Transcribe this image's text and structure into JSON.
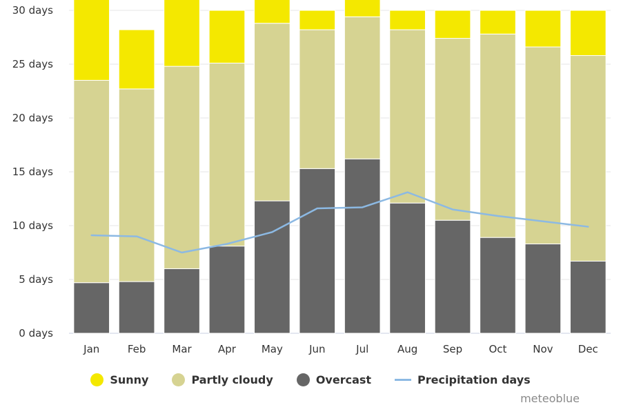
{
  "chart_data": {
    "type": "bar",
    "stacked": true,
    "categories": [
      "Jan",
      "Feb",
      "Mar",
      "Apr",
      "May",
      "Jun",
      "Jul",
      "Aug",
      "Sep",
      "Oct",
      "Nov",
      "Dec"
    ],
    "ylim": [
      0,
      30
    ],
    "yticks": [
      "0 days",
      "5 days",
      "10 days",
      "15 days",
      "20 days",
      "25 days",
      "30 days"
    ],
    "ytick_values": [
      0,
      5,
      10,
      15,
      20,
      25,
      30
    ],
    "grid": true,
    "legend_position": "bottom",
    "series": [
      {
        "name": "Overcast",
        "kind": "bar",
        "color": "#666666",
        "values": [
          4.7,
          4.8,
          6.0,
          8.1,
          12.3,
          15.3,
          16.2,
          12.1,
          10.5,
          8.9,
          8.3,
          6.7
        ]
      },
      {
        "name": "Partly cloudy",
        "kind": "bar",
        "color": "#d6d392",
        "values": [
          18.8,
          17.9,
          18.8,
          17.0,
          16.5,
          12.9,
          13.2,
          16.1,
          16.9,
          18.9,
          18.3,
          19.1
        ]
      },
      {
        "name": "Sunny",
        "kind": "bar",
        "color": "#f4e800",
        "values": [
          7.5,
          5.5,
          6.2,
          4.9,
          2.2,
          1.8,
          1.6,
          1.8,
          2.6,
          2.2,
          3.4,
          4.2
        ]
      },
      {
        "name": "Precipitation days",
        "kind": "line",
        "color": "#8cb9e3",
        "values": [
          9.1,
          9.0,
          7.5,
          8.3,
          9.4,
          11.6,
          11.7,
          13.1,
          11.5,
          10.9,
          10.4,
          9.9
        ]
      }
    ]
  },
  "legend": [
    {
      "label": "Sunny",
      "color": "#f4e800",
      "shape": "dot"
    },
    {
      "label": "Partly cloudy",
      "color": "#d6d392",
      "shape": "dot"
    },
    {
      "label": "Overcast",
      "color": "#666666",
      "shape": "dot"
    },
    {
      "label": "Precipitation days",
      "color": "#8cb9e3",
      "shape": "line"
    }
  ],
  "credit": "meteoblue"
}
